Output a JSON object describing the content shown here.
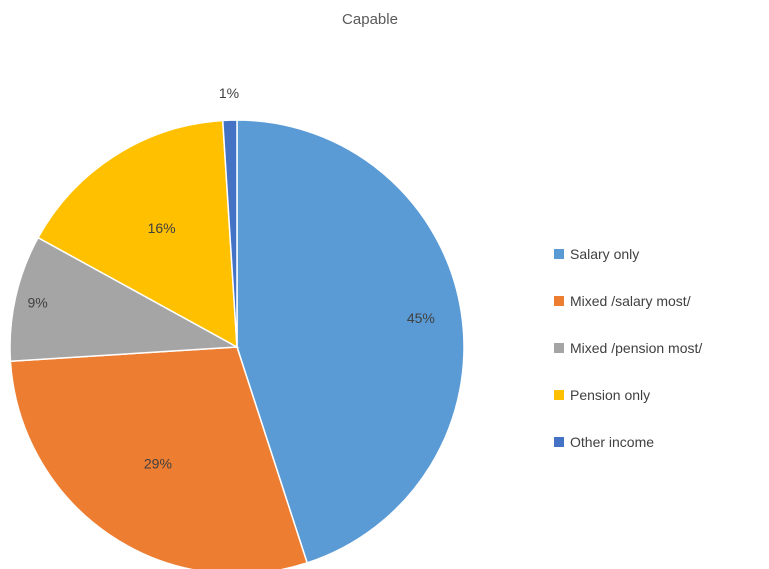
{
  "chart_data": {
    "type": "pie",
    "title": "Capable",
    "categories": [
      "Salary only",
      "Mixed /salary most/",
      "Mixed /pension most/",
      "Pension only",
      "Other income"
    ],
    "values": [
      45,
      29,
      9,
      16,
      1
    ],
    "data_labels": [
      "45%",
      "29%",
      "9%",
      "16%",
      "1%"
    ],
    "colors": [
      "#5B9BD5",
      "#ED7D31",
      "#A5A5A5",
      "#FFC000",
      "#4472C4"
    ],
    "start_angle_deg": 0,
    "direction": "clockwise",
    "legend_position": "right"
  }
}
